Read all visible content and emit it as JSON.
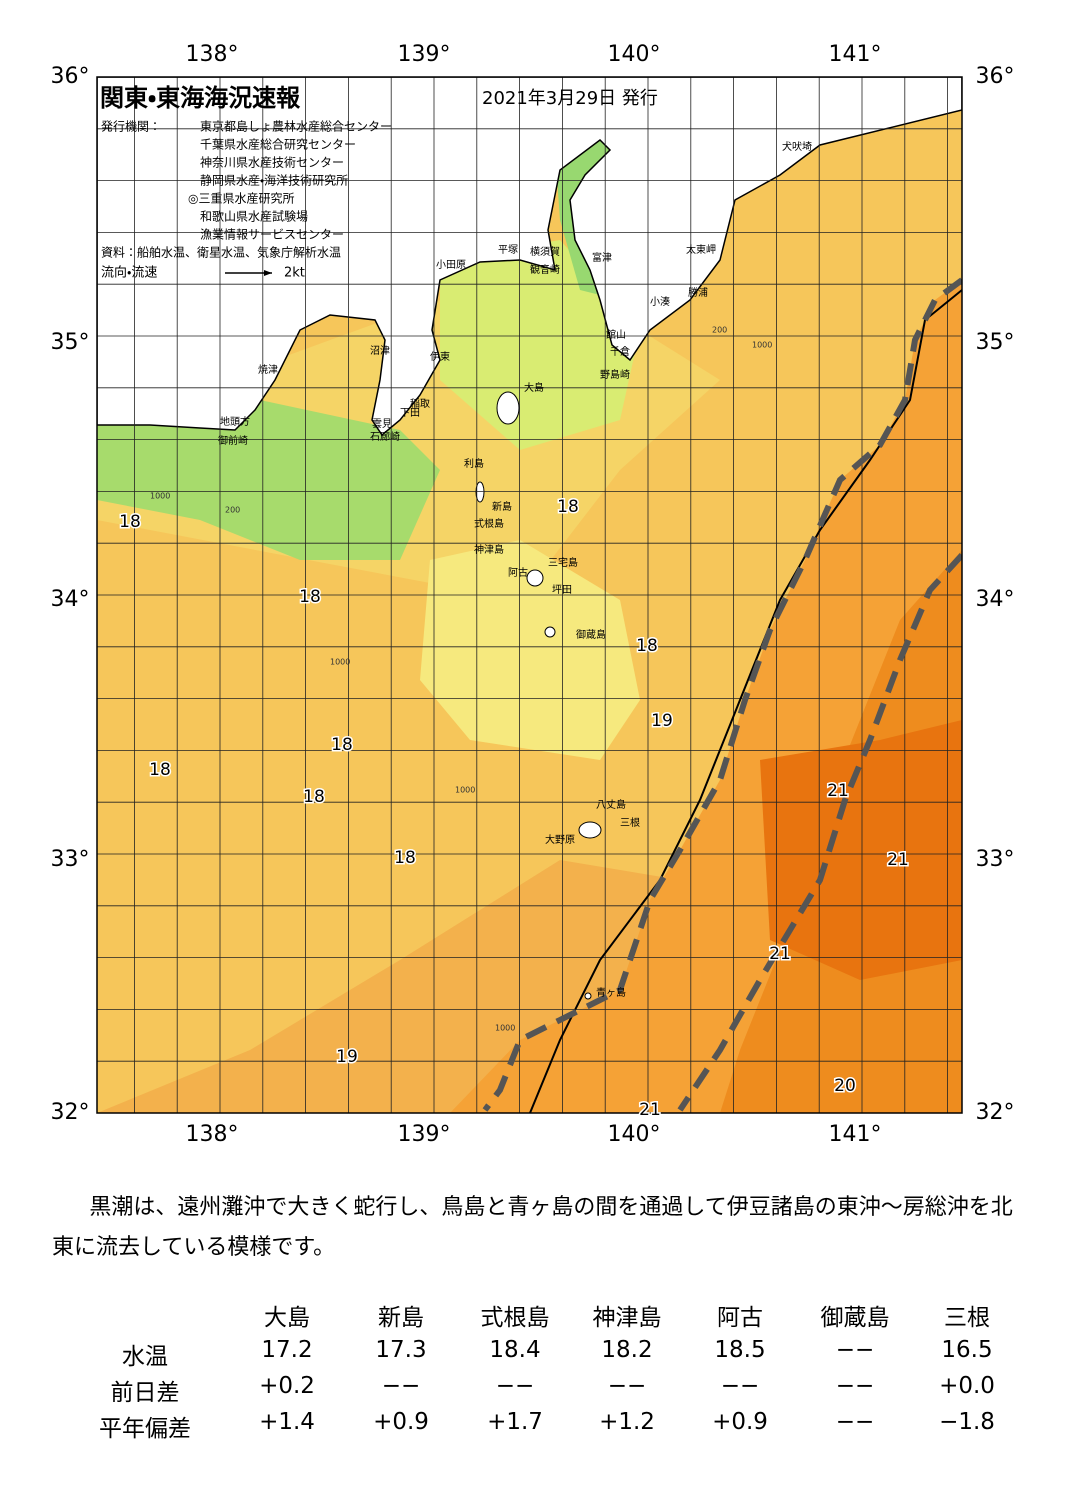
{
  "header": {
    "title": "関東・東海海況速報",
    "date": "2021年3月29日 発行",
    "issuers_label": "発行機関：",
    "issuers": [
      "東京都島しょ農林水産総合センター",
      "千葉県水産総合研究センター",
      "神奈川県水産技術センター",
      "静岡県水産・海洋技術研究所",
      "◎三重県水産研究所",
      "和歌山県水産試験場",
      "漁業情報サービスセンター"
    ],
    "source": "資料：船舶水温、衛星水温、気象庁解析水温",
    "legend_label": "流向・流速",
    "legend_speed": "2kt"
  },
  "axes": {
    "lon_top": [
      "138°",
      "139°",
      "140°",
      "141°"
    ],
    "lon_bottom": [
      "138°",
      "139°",
      "140°",
      "141°"
    ],
    "lat_left": [
      "36°",
      "35°",
      "34°",
      "33°",
      "32°"
    ],
    "lat_right": [
      "36°",
      "35°",
      "34°",
      "33°",
      "32°"
    ]
  },
  "places": [
    "犬吠埼",
    "太東岬",
    "勝浦",
    "小湊",
    "富津",
    "横須賀",
    "観音崎",
    "平塚",
    "小田原",
    "館山",
    "千倉",
    "野島崎",
    "大島",
    "沼津",
    "伊東",
    "焼津",
    "稲取",
    "下田",
    "雲見",
    "石廊崎",
    "地頭方",
    "御前崎",
    "利島",
    "新島",
    "式根島",
    "神津島",
    "三宅島",
    "阿古",
    "坪田",
    "御蔵島",
    "八丈島",
    "三根",
    "大野原",
    "青ヶ島"
  ],
  "isotherms": [
    "18",
    "18",
    "18",
    "18",
    "18",
    "18",
    "18",
    "18",
    "19",
    "19",
    "21",
    "21",
    "21",
    "21",
    "20"
  ],
  "depth_labels": [
    "1000",
    "200",
    "1000",
    "1000",
    "1000",
    "200",
    "1000"
  ],
  "summary": "黒潮は、遠州灘沖で大きく蛇行し、鳥島と青ヶ島の間を通過して伊豆諸島の東沖～房総沖を北東に流去している模様です。",
  "table": {
    "columns": [
      "大島",
      "新島",
      "式根島",
      "神津島",
      "阿古",
      "御蔵島",
      "三根"
    ],
    "rows": [
      {
        "label": "水温",
        "cells": [
          "17.2",
          "17.3",
          "18.4",
          "18.2",
          "18.5",
          "−−",
          "16.5"
        ]
      },
      {
        "label": "前日差",
        "cells": [
          "+0.2",
          "−−",
          "−−",
          "−−",
          "−−",
          "−−",
          "+0.0"
        ]
      },
      {
        "label": "平年偏差",
        "cells": [
          "+1.4",
          "+0.9",
          "+1.7",
          "+1.2",
          "+0.9",
          "−−",
          "−1.8"
        ]
      }
    ]
  }
}
